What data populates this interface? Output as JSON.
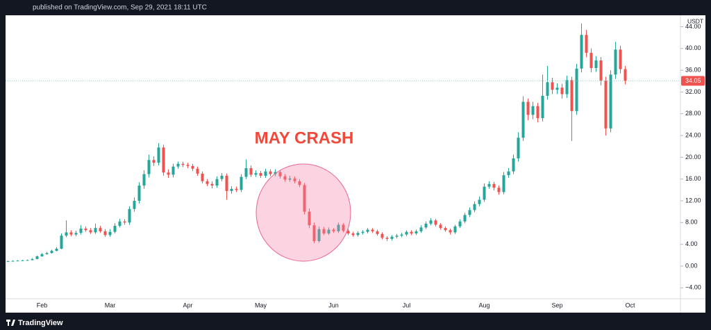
{
  "header": {
    "text": "published on TradingView.com, Sep 29, 2021 18:11 UTC"
  },
  "footer": {
    "brand": "TradingView"
  },
  "chart_data": {
    "type": "candlestick",
    "annotation": "MAY CRASH",
    "currency": "USDT",
    "up_color": "#26a69a",
    "down_color": "#ef5350",
    "grid": false,
    "ylim": [
      -6,
      46.1
    ],
    "yticks": [
      {
        "value": 44,
        "label": "44.00"
      },
      {
        "value": 40,
        "label": "40.00"
      },
      {
        "value": 36,
        "label": "36.00"
      },
      {
        "value": 32,
        "label": "32.00"
      },
      {
        "value": 28,
        "label": "28.00"
      },
      {
        "value": 24,
        "label": "24.00"
      },
      {
        "value": 20,
        "label": "20.00"
      },
      {
        "value": 16,
        "label": "16.00"
      },
      {
        "value": 12,
        "label": "12.00"
      },
      {
        "value": 8,
        "label": "8.00"
      },
      {
        "value": 4,
        "label": "4.00"
      },
      {
        "value": 0,
        "label": "0.00"
      },
      {
        "value": -4,
        "label": "−4.00"
      }
    ],
    "categories": [
      null,
      null,
      null,
      null,
      null,
      null,
      null,
      "Feb",
      null,
      null,
      null,
      null,
      null,
      null,
      null,
      null,
      null,
      null,
      null,
      null,
      null,
      "Mar",
      null,
      null,
      null,
      null,
      null,
      null,
      null,
      null,
      null,
      null,
      null,
      null,
      null,
      null,
      null,
      "Apr",
      null,
      null,
      null,
      null,
      null,
      null,
      null,
      null,
      null,
      null,
      null,
      null,
      null,
      null,
      "May",
      null,
      null,
      null,
      null,
      null,
      null,
      null,
      null,
      null,
      null,
      null,
      null,
      null,
      null,
      "Jun",
      null,
      null,
      null,
      null,
      null,
      null,
      null,
      null,
      null,
      null,
      null,
      null,
      null,
      null,
      "Jul",
      null,
      null,
      null,
      null,
      null,
      null,
      null,
      null,
      null,
      null,
      null,
      null,
      null,
      null,
      null,
      "Aug",
      null,
      null,
      null,
      null,
      null,
      null,
      null,
      null,
      null,
      null,
      null,
      null,
      null,
      null,
      "Sep",
      null,
      null,
      null,
      null,
      null,
      null,
      null,
      null,
      null,
      null,
      null,
      null,
      null,
      null,
      "Oct"
    ],
    "open": [
      0.85,
      0.9,
      0.95,
      1.0,
      1.05,
      1.1,
      1.3,
      1.8,
      2.2,
      2.4,
      2.8,
      3.2,
      5.6,
      6.2,
      5.8,
      6.1,
      6.9,
      6.6,
      6.2,
      7.0,
      6.4,
      5.7,
      6.3,
      7.4,
      8.2,
      8.0,
      10.5,
      12.0,
      14.8,
      16.9,
      19.5,
      19.0,
      21.8,
      17.2,
      16.8,
      18.3,
      18.8,
      18.6,
      18.4,
      17.9,
      17.0,
      15.6,
      15.1,
      14.8,
      16.0,
      16.6,
      13.8,
      14.2,
      14.0,
      16.4,
      18.0,
      16.8,
      17.1,
      16.6,
      17.4,
      16.9,
      17.3,
      16.5,
      15.9,
      16.1,
      15.6,
      14.9,
      10.0,
      7.5,
      4.6,
      6.8,
      6.0,
      6.7,
      6.4,
      7.6,
      6.5,
      6.0,
      5.7,
      6.1,
      6.3,
      6.7,
      6.4,
      5.9,
      5.2,
      5.0,
      5.4,
      5.6,
      5.8,
      6.3,
      6.0,
      6.4,
      7.1,
      7.8,
      8.4,
      7.6,
      7.0,
      6.6,
      6.2,
      7.3,
      8.2,
      9.4,
      10.3,
      11.4,
      12.2,
      14.6,
      15.1,
      14.4,
      13.6,
      16.7,
      17.4,
      19.8,
      23.6,
      30.2,
      27.8,
      29.4,
      27.2,
      31.3,
      33.8,
      32.4,
      32.8,
      31.6,
      34.2,
      28.5,
      36.3,
      42.5,
      39.2,
      36.4,
      37.8,
      34.1,
      25.3,
      35.2,
      39.8,
      36.2,
      null
    ],
    "high": [
      1.0,
      1.05,
      1.1,
      1.15,
      1.2,
      1.45,
      1.95,
      2.4,
      2.6,
      3.0,
      3.5,
      6.0,
      8.4,
      6.6,
      6.5,
      7.5,
      7.3,
      7.0,
      7.8,
      7.4,
      6.8,
      6.8,
      7.9,
      8.7,
      8.6,
      11.0,
      12.6,
      15.4,
      17.6,
      20.5,
      20.2,
      22.6,
      22.3,
      17.8,
      18.8,
      19.2,
      19.2,
      19.0,
      18.8,
      18.3,
      17.4,
      16.0,
      15.6,
      16.5,
      17.1,
      17.0,
      14.7,
      14.6,
      16.9,
      19.6,
      18.5,
      17.6,
      17.5,
      17.9,
      17.8,
      17.8,
      17.7,
      16.9,
      16.6,
      16.5,
      16.0,
      15.3,
      10.6,
      8.0,
      7.3,
      7.2,
      7.1,
      7.0,
      8.0,
      7.9,
      6.8,
      6.3,
      6.4,
      6.6,
      7.0,
      7.0,
      6.7,
      6.2,
      5.5,
      5.7,
      5.9,
      6.1,
      6.6,
      6.6,
      6.7,
      7.5,
      8.2,
      8.8,
      8.7,
      7.9,
      7.3,
      6.9,
      7.6,
      8.6,
      9.8,
      10.8,
      11.9,
      12.8,
      15.2,
      15.6,
      15.5,
      14.8,
      17.3,
      18.0,
      20.5,
      24.6,
      31.2,
      30.8,
      30.2,
      30.0,
      35.2,
      36.8,
      34.6,
      33.6,
      33.5,
      35.0,
      34.8,
      37.2,
      44.6,
      43.4,
      40.0,
      38.6,
      38.4,
      34.8,
      36.0,
      41.2,
      40.5,
      36.8,
      null
    ],
    "low": [
      0.8,
      0.85,
      0.9,
      0.95,
      1.0,
      1.05,
      1.25,
      1.7,
      2.1,
      2.3,
      2.7,
      3.1,
      5.3,
      5.5,
      5.5,
      5.8,
      6.3,
      5.9,
      5.9,
      6.1,
      5.4,
      5.4,
      6.0,
      7.1,
      7.6,
      7.6,
      10.0,
      11.5,
      14.2,
      16.3,
      18.4,
      18.5,
      16.6,
      16.2,
      16.3,
      17.9,
      18.2,
      18.0,
      17.5,
      16.6,
      15.2,
      14.7,
      14.3,
      14.4,
      15.6,
      12.2,
      13.3,
      13.6,
      13.6,
      16.0,
      16.4,
      16.4,
      16.2,
      16.2,
      16.5,
      16.5,
      16.1,
      15.5,
      15.5,
      15.2,
      14.5,
      9.5,
      7.0,
      4.2,
      4.3,
      5.7,
      5.7,
      6.1,
      6.1,
      6.2,
      5.7,
      5.4,
      5.4,
      5.8,
      6.0,
      6.1,
      5.6,
      4.9,
      4.6,
      4.7,
      5.1,
      5.3,
      5.5,
      5.7,
      5.7,
      6.1,
      6.8,
      7.5,
      7.3,
      6.7,
      6.3,
      5.8,
      5.9,
      7.0,
      7.9,
      9.0,
      9.9,
      11.0,
      11.8,
      14.2,
      13.9,
      13.1,
      13.2,
      16.2,
      16.9,
      19.2,
      23.0,
      26.8,
      27.0,
      26.4,
      26.6,
      30.6,
      31.6,
      31.6,
      30.8,
      30.9,
      23.0,
      27.8,
      35.6,
      38.4,
      35.6,
      35.7,
      33.2,
      24.0,
      24.6,
      34.4,
      35.4,
      33.4,
      null
    ],
    "close": [
      0.9,
      0.95,
      1.0,
      1.05,
      1.1,
      1.3,
      1.8,
      2.2,
      2.4,
      2.8,
      3.2,
      5.6,
      6.2,
      5.8,
      6.1,
      6.9,
      6.6,
      6.2,
      7.0,
      6.4,
      5.7,
      6.3,
      7.4,
      8.2,
      8.0,
      10.5,
      12.0,
      14.8,
      16.9,
      19.5,
      19.0,
      21.8,
      17.2,
      16.8,
      18.3,
      18.8,
      18.6,
      18.4,
      17.9,
      17.0,
      15.6,
      15.1,
      14.8,
      16.0,
      16.6,
      13.8,
      14.2,
      14.0,
      16.4,
      18.0,
      16.8,
      17.1,
      16.6,
      17.4,
      16.9,
      17.3,
      16.5,
      15.9,
      16.1,
      15.6,
      14.9,
      10.0,
      7.5,
      4.6,
      6.8,
      6.0,
      6.7,
      6.4,
      7.6,
      6.5,
      6.0,
      5.7,
      6.1,
      6.3,
      6.7,
      6.4,
      5.9,
      5.2,
      5.0,
      5.4,
      5.6,
      5.8,
      6.3,
      6.0,
      6.4,
      7.1,
      7.8,
      8.4,
      7.6,
      7.0,
      6.6,
      6.2,
      7.3,
      8.2,
      9.4,
      10.3,
      11.4,
      12.2,
      14.6,
      15.1,
      14.4,
      13.6,
      16.7,
      17.4,
      19.8,
      23.6,
      30.2,
      27.8,
      29.4,
      27.2,
      31.3,
      33.8,
      32.4,
      32.8,
      31.6,
      34.2,
      28.5,
      36.3,
      42.5,
      39.2,
      36.4,
      37.8,
      34.1,
      25.3,
      35.2,
      39.8,
      36.2,
      34.05,
      null
    ]
  }
}
